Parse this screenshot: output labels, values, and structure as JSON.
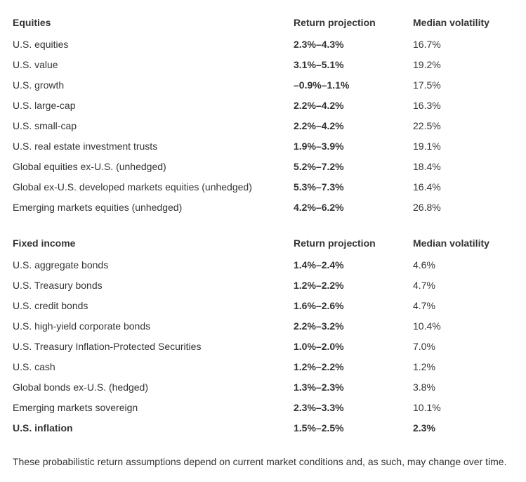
{
  "equities": {
    "header": {
      "name": "Equities",
      "return": "Return projection",
      "volatility": "Median volatility"
    },
    "rows": [
      {
        "name": "U.S. equities",
        "return": "2.3%–4.3%",
        "volatility": "16.7%"
      },
      {
        "name": "U.S. value",
        "return": "3.1%–5.1%",
        "volatility": "19.2%"
      },
      {
        "name": "U.S. growth",
        "return": "–0.9%–1.1%",
        "volatility": "17.5%"
      },
      {
        "name": "U.S. large-cap",
        "return": "2.2%–4.2%",
        "volatility": "16.3%"
      },
      {
        "name": "U.S. small-cap",
        "return": "2.2%–4.2%",
        "volatility": "22.5%"
      },
      {
        "name": "U.S. real estate investment trusts",
        "return": "1.9%–3.9%",
        "volatility": "19.1%"
      },
      {
        "name": "Global equities ex-U.S. (unhedged)",
        "return": "5.2%–7.2%",
        "volatility": "18.4%"
      },
      {
        "name": "Global ex-U.S. developed markets equities (unhedged)",
        "return": "5.3%–7.3%",
        "volatility": "16.4%"
      },
      {
        "name": "Emerging markets equities (unhedged)",
        "return": "4.2%–6.2%",
        "volatility": "26.8%"
      }
    ]
  },
  "fixed_income": {
    "header": {
      "name": "Fixed income",
      "return": "Return projection",
      "volatility": "Median volatility"
    },
    "rows": [
      {
        "name": "U.S. aggregate bonds",
        "return": "1.4%–2.4%",
        "volatility": "4.6%"
      },
      {
        "name": "U.S. Treasury bonds",
        "return": "1.2%–2.2%",
        "volatility": "4.7%"
      },
      {
        "name": "U.S. credit bonds",
        "return": "1.6%–2.6%",
        "volatility": "4.7%"
      },
      {
        "name": "U.S. high-yield corporate bonds",
        "return": "2.2%–3.2%",
        "volatility": "10.4%"
      },
      {
        "name": "U.S. Treasury Inflation-Protected Securities",
        "return": "1.0%–2.0%",
        "volatility": "7.0%"
      },
      {
        "name": "U.S. cash",
        "return": "1.2%–2.2%",
        "volatility": "1.2%"
      },
      {
        "name": "Global bonds ex-U.S. (hedged)",
        "return": "1.3%–2.3%",
        "volatility": "3.8%"
      },
      {
        "name": "Emerging markets sovereign",
        "return": "2.3%–3.3%",
        "volatility": "10.1%"
      },
      {
        "name": "U.S. inflation",
        "return": "1.5%–2.5%",
        "volatility": "2.3%",
        "bold": true
      }
    ]
  },
  "footnote": "These probabilistic return assumptions depend on current market conditions and, as such, may change over time."
}
